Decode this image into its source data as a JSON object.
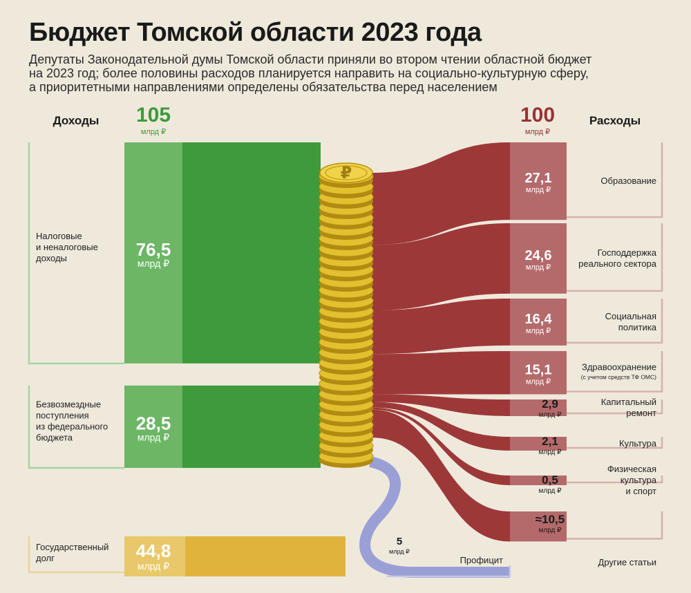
{
  "title": "Бюджет Томской области 2023 года",
  "subtitle_lines": [
    "Депутаты Законодательной думы Томской области приняли во втором чтении областной бюджет",
    "на 2023 год; более половины расходов планируется направить на социально-культурную сферу,",
    "а приоритетными направлениями определены обязательства перед населением"
  ],
  "unit": "млрд ₽",
  "colors": {
    "income": "#3e9a3a",
    "income_light": "#6cb666",
    "expense": "#9a3234",
    "expense_light": "#b46a6b",
    "debt": "#e0b43c",
    "debt_light": "#e8c86a",
    "surplus": "#9aa0d6",
    "background": "#efe9dc",
    "coin": "#e3c030"
  },
  "chart_data": {
    "type": "sankey",
    "income": {
      "header": "Доходы",
      "total": "105",
      "items": [
        {
          "label_lines": [
            "Налоговые",
            "и неналоговые",
            "доходы"
          ],
          "value": 76.5,
          "display": "76,5"
        },
        {
          "label_lines": [
            "Безвозмездные",
            "поступления",
            "из федерального",
            "бюджета"
          ],
          "value": 28.5,
          "display": "28,5"
        }
      ]
    },
    "expenses": {
      "header": "Расходы",
      "total": "100",
      "items": [
        {
          "label_lines": [
            "Образование"
          ],
          "value": 27.1,
          "display": "27,1"
        },
        {
          "label_lines": [
            "Господдержка",
            "реального сектора"
          ],
          "value": 24.6,
          "display": "24,6"
        },
        {
          "label_lines": [
            "Социальная",
            "политика"
          ],
          "value": 16.4,
          "display": "16,4"
        },
        {
          "label_lines": [
            "Здравоохранение"
          ],
          "note": "(с учетом средств ТФ ОМС)",
          "value": 15.1,
          "display": "15,1"
        },
        {
          "label_lines": [
            "Капитальный",
            "ремонт"
          ],
          "value": 2.9,
          "display": "2,9"
        },
        {
          "label_lines": [
            "Культура"
          ],
          "value": 2.1,
          "display": "2,1"
        },
        {
          "label_lines": [
            "Физическая",
            "культура",
            "и спорт"
          ],
          "value": 0.5,
          "display": "0,5"
        },
        {
          "label_lines": [
            "Другие статьи"
          ],
          "value": 10.5,
          "display": "≈10,5"
        }
      ]
    },
    "surplus": {
      "label": "Профицит",
      "value": 5,
      "display": "5"
    },
    "debt": {
      "label_lines": [
        "Государственный",
        "долг"
      ],
      "value": 44.8,
      "display": "44,8"
    }
  }
}
